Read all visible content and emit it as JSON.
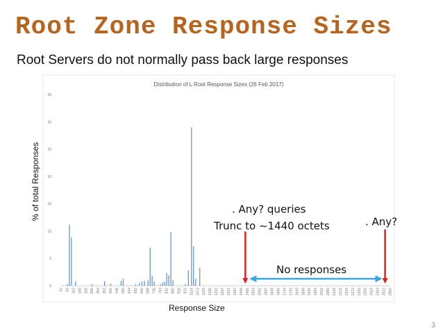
{
  "slide": {
    "title": "Root Zone Response Sizes",
    "subtitle": "Root Servers do not normally pass back large responses",
    "page_number": "3"
  },
  "chart_data": {
    "type": "bar",
    "title": "Distribution of L Root Response Sizes (26 Feb 2017)",
    "xlabel": "Response Size",
    "ylabel": "% of total Responses",
    "ylim": [
      0,
      35
    ],
    "yticks": [
      "0",
      "5",
      "10",
      "15",
      "20",
      "25",
      "30",
      "35"
    ],
    "grid": false,
    "x_labels": [
      "16",
      "64",
      "112",
      "160",
      "208",
      "256",
      "304",
      "352",
      "400",
      "448",
      "496",
      "544",
      "592",
      "640",
      "688",
      "736",
      "784",
      "832",
      "880",
      "928",
      "976",
      "1024",
      "1072",
      "1120",
      "1168",
      "1216",
      "1264",
      "1312",
      "1360",
      "1408",
      "1456",
      "1504",
      "1552",
      "1600",
      "1648",
      "1696",
      "1744",
      "1792",
      "1840",
      "1888",
      "1936",
      "1984",
      "2032",
      "2080",
      "2128",
      "2176",
      "2224",
      "2272",
      "2320",
      "2368",
      "2416",
      "2464",
      "2512",
      "2560"
    ],
    "x_range": [
      16,
      2560
    ],
    "series": [
      {
        "color": "#5b8dd3",
        "x": [
          64,
          80,
          96,
          128,
          256,
          352,
          400,
          480,
          496,
          592,
          620,
          640,
          660,
          688,
          704,
          720,
          736,
          784,
          800,
          816,
          832,
          848,
          864,
          880,
          976,
          1000,
          1024,
          1040,
          1056,
          1088
        ],
        "values": [
          0.3,
          11.2,
          8.8,
          0.8,
          0.3,
          0.8,
          0.4,
          0.9,
          1.3,
          0.3,
          0.5,
          0.8,
          0.9,
          1.0,
          7.0,
          1.8,
          0.8,
          0.3,
          0.6,
          0.8,
          2.3,
          1.9,
          9.8,
          1.0,
          0.3,
          2.8,
          29.0,
          7.2,
          1.3,
          3.3
        ]
      }
    ]
  },
  "annotations": {
    "any_queries": ". Any? queries",
    "trunc": "Trunc to ~1440 octets",
    "any": ". Any?",
    "no_responses": "No responses",
    "red_arrow_1_x": 1440,
    "red_arrow_2_x": 2520
  }
}
